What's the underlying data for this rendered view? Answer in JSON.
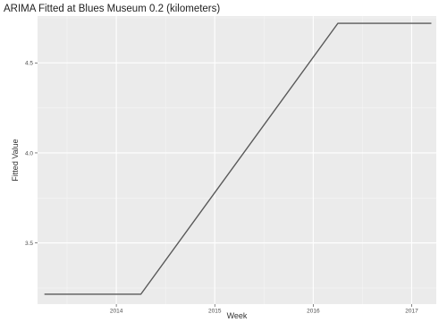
{
  "chart_data": {
    "type": "line",
    "title": "ARIMA Fitted at Blues Museum 0.2 (kilometers)",
    "xlabel": "Week",
    "ylabel": "Fitted Value",
    "x_ticks": [
      {
        "value": 2014,
        "label": "2014"
      },
      {
        "value": 2015,
        "label": "2015"
      },
      {
        "value": 2016,
        "label": "2016"
      },
      {
        "value": 2017,
        "label": "2017"
      }
    ],
    "y_ticks": [
      {
        "value": 3.5,
        "label": "3.5"
      },
      {
        "value": 4.0,
        "label": "4.0"
      },
      {
        "value": 4.5,
        "label": "4.5"
      }
    ],
    "xlim": [
      2013.2,
      2017.25
    ],
    "ylim": [
      3.16,
      4.76
    ],
    "grid": true,
    "legend": "none",
    "colors": {
      "panel": "#ebebeb",
      "grid_major": "#ffffff",
      "grid_minor": "#f5f5f5",
      "line": "#595959",
      "tick": "#333333"
    },
    "series": [
      {
        "x": [
          2013.27,
          2014.25,
          2016.25,
          2017.2
        ],
        "y": [
          3.215,
          3.215,
          4.72,
          4.72
        ]
      }
    ]
  }
}
